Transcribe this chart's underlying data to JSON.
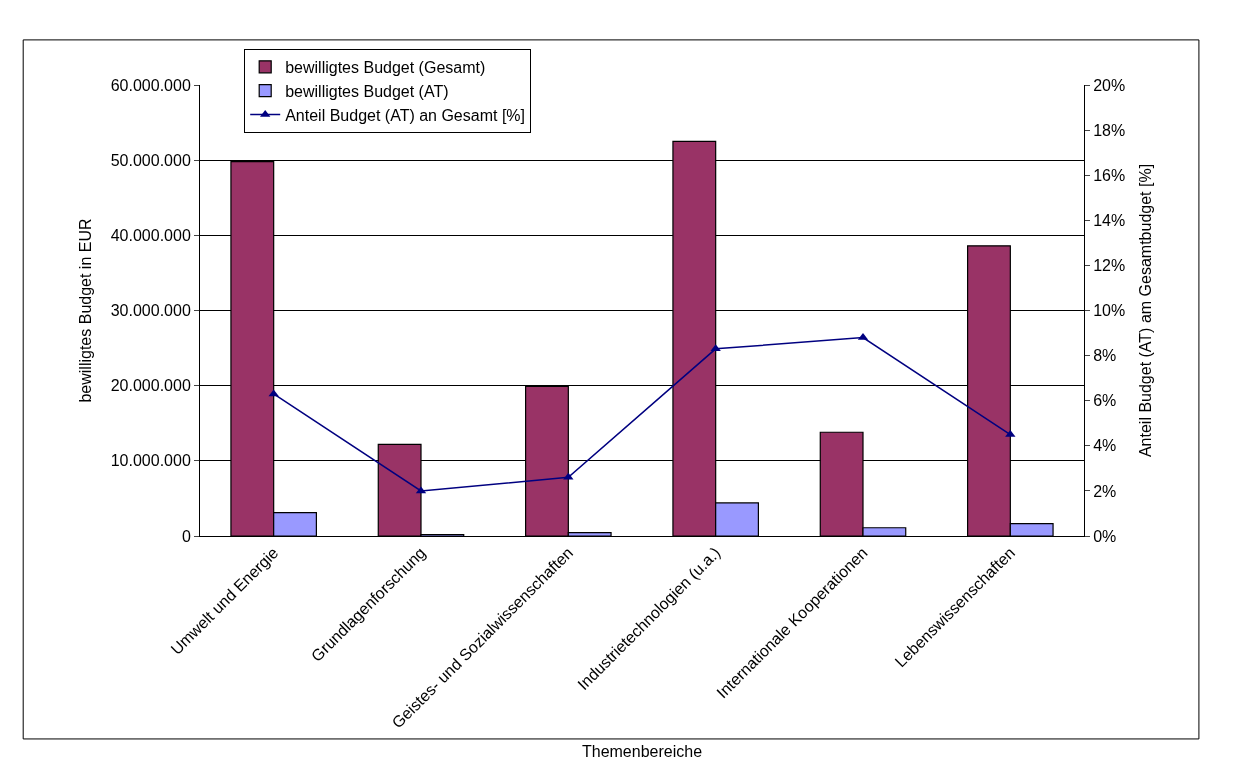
{
  "chart_data": {
    "type": "bar",
    "xlabel": "Themenbereiche",
    "ylabel": "bewilligtes Budget in EUR",
    "y2label": "Anteil Budget (AT) am Gesamtbudget [%]",
    "categories": [
      "Umwelt und Energie",
      "Grundlagenforschung",
      "Geistes- und Sozialwissenschaften",
      "Industrietechnologien (u.a.)",
      "Internationale Kooperationen",
      "Lebenswissenschaften"
    ],
    "series": [
      {
        "name": "bewilligtes Budget (Gesamt)",
        "color": "#993366",
        "values": [
          49800000,
          12200000,
          19900000,
          52500000,
          13800000,
          38600000
        ]
      },
      {
        "name": "bewilligtes Budget (AT)",
        "color": "#9999ff",
        "values": [
          3100000,
          200000,
          450000,
          4400000,
          1100000,
          1650000
        ]
      },
      {
        "name": "Anteil Budget (AT) an Gesamt [%]",
        "type": "line",
        "axis": "y2",
        "color": "#000080",
        "marker": "triangle",
        "values": [
          6.3,
          2.0,
          2.6,
          8.3,
          8.8,
          4.5
        ]
      }
    ],
    "ylim": [
      0,
      60000000
    ],
    "yticks": [
      {
        "value": 0,
        "label": "0"
      },
      {
        "value": 10000000,
        "label": "10.000.000"
      },
      {
        "value": 20000000,
        "label": "20.000.000"
      },
      {
        "value": 30000000,
        "label": "30.000.000"
      },
      {
        "value": 40000000,
        "label": "40.000.000"
      },
      {
        "value": 50000000,
        "label": "50.000.000"
      },
      {
        "value": 60000000,
        "label": "60.000.000"
      }
    ],
    "y2lim": [
      0,
      20
    ],
    "y2ticks": [
      {
        "value": 0,
        "label": "0%"
      },
      {
        "value": 2,
        "label": "2%"
      },
      {
        "value": 4,
        "label": "4%"
      },
      {
        "value": 6,
        "label": "6%"
      },
      {
        "value": 8,
        "label": "8%"
      },
      {
        "value": 10,
        "label": "10%"
      },
      {
        "value": 12,
        "label": "12%"
      },
      {
        "value": 14,
        "label": "14%"
      },
      {
        "value": 16,
        "label": "16%"
      },
      {
        "value": 18,
        "label": "18%"
      },
      {
        "value": 20,
        "label": "20%"
      }
    ],
    "grid": "y",
    "legend": "top left"
  }
}
